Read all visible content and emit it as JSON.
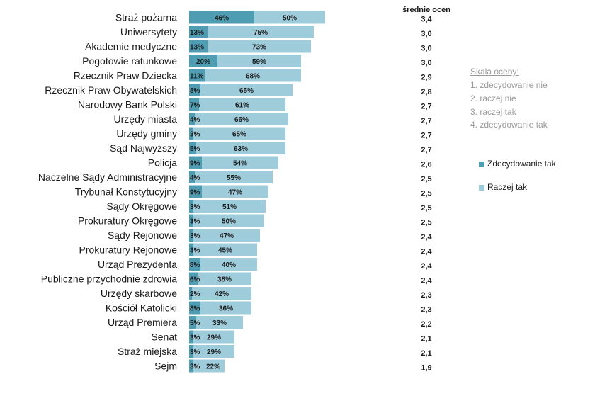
{
  "chart_data": {
    "type": "bar",
    "orientation": "horizontal",
    "stacked": true,
    "categories": [
      "Straż pożarna",
      "Uniwersytety",
      "Akademie medyczne",
      "Pogotowie ratunkowe",
      "Rzecznik Praw Dziecka",
      "Rzecznik Praw Obywatelskich",
      "Narodowy Bank Polski",
      "Urzędy miasta",
      "Urzędy gminy",
      "Sąd Najwyższy",
      "Policja",
      "Naczelne Sądy Administracyjne",
      "Trybunał Konstytucyjny",
      "Sądy Okręgowe",
      "Prokuratury Okręgowe",
      "Sądy Rejonowe",
      "Prokuratury Rejonowe",
      "Urząd Prezydenta",
      "Publiczne przychodnie zdrowia",
      "Urzędy skarbowe",
      "Kościół Katolicki",
      "Urząd Premiera",
      "Senat",
      "Straż miejska",
      "Sejm"
    ],
    "series": [
      {
        "name": "Zdecydowanie tak",
        "color": "#4f9db3",
        "values": [
          46,
          13,
          13,
          20,
          11,
          8,
          7,
          4,
          3,
          5,
          9,
          4,
          9,
          3,
          3,
          3,
          3,
          8,
          6,
          2,
          8,
          5,
          3,
          3,
          3
        ],
        "labels": [
          "46%",
          "13%",
          "13%",
          "20%",
          "11%",
          "8%",
          "7%",
          "4%",
          "3%",
          "5%",
          "9%",
          "4%",
          "9%",
          "3%",
          "3%",
          "3%",
          "3%",
          "8%",
          "6%",
          "2%",
          "8%",
          "5%",
          "3%",
          "3%",
          "3%"
        ]
      },
      {
        "name": "Raczej tak",
        "color": "#9fccdb",
        "values": [
          50,
          75,
          73,
          59,
          68,
          65,
          61,
          66,
          65,
          63,
          54,
          55,
          47,
          51,
          50,
          47,
          45,
          40,
          38,
          42,
          36,
          33,
          29,
          29,
          22
        ],
        "labels": [
          "50%",
          "75%",
          "73%",
          "59%",
          "68%",
          "65%",
          "61%",
          "66%",
          "65%",
          "63%",
          "54%",
          "55%",
          "47%",
          "51%",
          "50%",
          "47%",
          "45%",
          "40%",
          "38%",
          "42%",
          "36%",
          "33%",
          "29%",
          "29%",
          "22%"
        ]
      }
    ],
    "averages_header": "średnie ocen",
    "averages": [
      "3,4",
      "3,0",
      "3,0",
      "3,0",
      "2,9",
      "2,8",
      "2,7",
      "2,7",
      "2,7",
      "2,7",
      "2,6",
      "2,5",
      "2,5",
      "2,5",
      "2,5",
      "2,4",
      "2,4",
      "2,4",
      "2,4",
      "2,3",
      "2,3",
      "2,2",
      "2,1",
      "2,1",
      "1,9"
    ],
    "legend_position": "right",
    "grid": false
  },
  "scale": {
    "title": "Skala oceny:",
    "items": [
      "1. zdecydowanie nie",
      "2. raczej nie",
      "3. raczej tak",
      "4. zdecydowanie tak"
    ]
  },
  "legend": {
    "strong_label": "Zdecydowanie tak",
    "moderate_label": "Raczej tak"
  }
}
